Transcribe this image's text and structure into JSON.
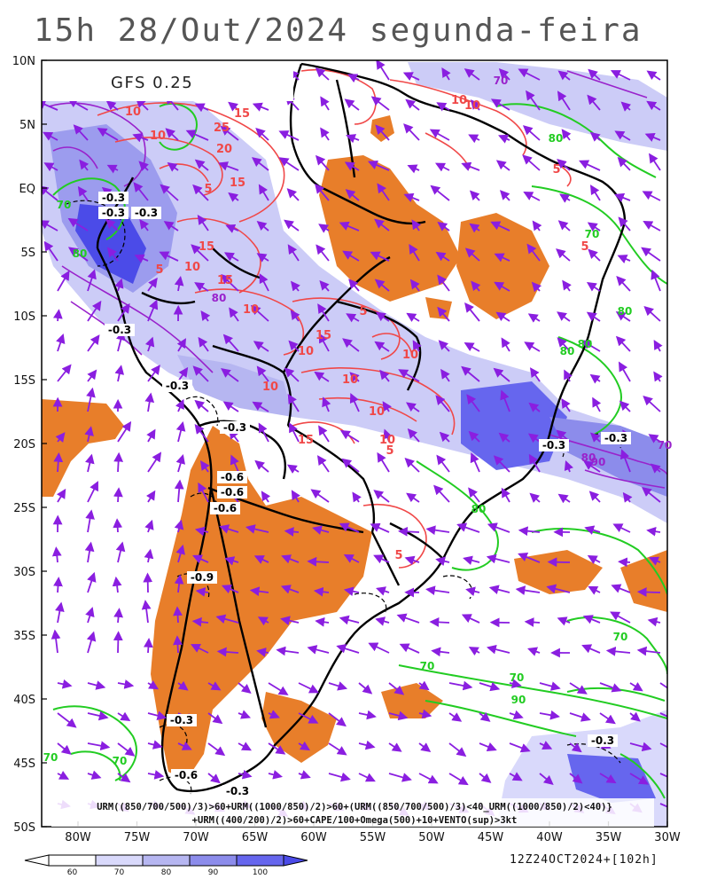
{
  "title": "15h 28/Out/2024 segunda-feira",
  "model_label": "GFS 0.25",
  "lat_ticks": [
    "10N",
    "5N",
    "EQ",
    "5S",
    "10S",
    "15S",
    "20S",
    "25S",
    "30S",
    "35S",
    "40S",
    "45S",
    "50S"
  ],
  "lon_ticks": [
    "80W",
    "75W",
    "70W",
    "65W",
    "60W",
    "55W",
    "50W",
    "45W",
    "40W",
    "35W",
    "30W"
  ],
  "legend": {
    "values": [
      "60",
      "70",
      "80",
      "90",
      "100"
    ],
    "colors": [
      "#ffffff",
      "#d9d9fb",
      "#b6b6f1",
      "#8c8ceb",
      "#6666ee",
      "#4b4be8"
    ]
  },
  "caption_line1": "URM((850/700/500)/3)>60+URM((1000/850)/2)>60+(URM((850/700/500)/3)<40_URM((1000/850)/2)<40)}",
  "caption_line2": "+URM((400/200)/2)>60+CAPE/100+Omega(500)+10+VENTO(sup)>3kt",
  "run_label": "12Z24OCT2024+[102h]",
  "contour_labels": {
    "omega": [
      "-0.3",
      "-0.3",
      "-0.3",
      "-0.3",
      "-0.3",
      "-0.3",
      "-0.6",
      "-0.6",
      "-0.6",
      "-0.9",
      "-0.3",
      "-0.6",
      "-0.3",
      "-0.3",
      "-0.3",
      "-0.3"
    ],
    "cape": [
      "10",
      "15",
      "25",
      "20",
      "15",
      "10",
      "5",
      "15",
      "10",
      "5",
      "15",
      "10",
      "10",
      "10",
      "15",
      "10",
      "5",
      "10",
      "5",
      "10",
      "10",
      "10",
      "5",
      "5",
      "10",
      "15",
      "5"
    ],
    "urm_green": [
      "70",
      "80",
      "80",
      "70",
      "80",
      "80",
      "70",
      "80",
      "70",
      "70",
      "90",
      "70",
      "70",
      "80"
    ],
    "urm_purple": [
      "70",
      "80",
      "90",
      "80",
      "70"
    ]
  },
  "colors": {
    "orange_dry": "#e87e2a",
    "purple_vector": "#8a1ee0",
    "red_cape": "#f04848",
    "green_urm": "#22cc22",
    "purple_urm": "#9922cc",
    "coast": "#000000"
  }
}
